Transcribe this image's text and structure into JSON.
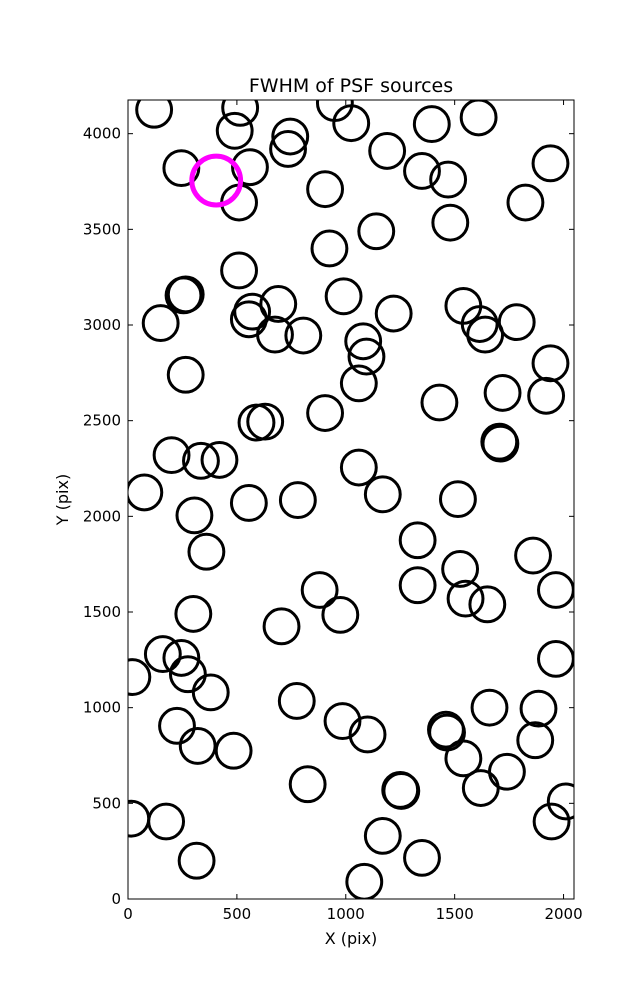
{
  "chart_data": {
    "type": "scatter",
    "title": "FWHM of PSF sources",
    "xlabel": "X (pix)",
    "ylabel": "Y (pix)",
    "xlim": [
      0,
      2048
    ],
    "ylim": [
      0,
      4176
    ],
    "xticks": [
      0,
      500,
      1000,
      1500,
      2000
    ],
    "yticks": [
      0,
      500,
      1000,
      1500,
      2000,
      2500,
      3000,
      3500,
      4000
    ],
    "grid": false,
    "marker_radius_pix": 80,
    "series": [
      {
        "color": "#000000",
        "points": [
          [
            120,
            4125
          ],
          [
            515,
            4135
          ],
          [
            950,
            4160
          ],
          [
            490,
            4015
          ],
          [
            745,
            3985
          ],
          [
            735,
            3920
          ],
          [
            1025,
            4055
          ],
          [
            1395,
            4050
          ],
          [
            1610,
            4085
          ],
          [
            245,
            3820
          ],
          [
            560,
            3825
          ],
          [
            1190,
            3910
          ],
          [
            1350,
            3805
          ],
          [
            1470,
            3760
          ],
          [
            1940,
            3845
          ],
          [
            510,
            3640
          ],
          [
            905,
            3710
          ],
          [
            1480,
            3535
          ],
          [
            1825,
            3640
          ],
          [
            925,
            3400
          ],
          [
            1140,
            3490
          ],
          [
            510,
            3285
          ],
          [
            255,
            3155
          ],
          [
            265,
            3160
          ],
          [
            990,
            3150
          ],
          [
            1540,
            3100
          ],
          [
            150,
            3010
          ],
          [
            570,
            3070
          ],
          [
            555,
            3030
          ],
          [
            690,
            3110
          ],
          [
            675,
            2950
          ],
          [
            805,
            2945
          ],
          [
            1080,
            2915
          ],
          [
            1220,
            3060
          ],
          [
            1615,
            3005
          ],
          [
            1640,
            2950
          ],
          [
            1785,
            3015
          ],
          [
            265,
            2740
          ],
          [
            1095,
            2835
          ],
          [
            1060,
            2695
          ],
          [
            1720,
            2645
          ],
          [
            1940,
            2800
          ],
          [
            1920,
            2630
          ],
          [
            905,
            2540
          ],
          [
            590,
            2490
          ],
          [
            630,
            2495
          ],
          [
            1430,
            2595
          ],
          [
            1705,
            2390
          ],
          [
            1710,
            2380
          ],
          [
            200,
            2320
          ],
          [
            335,
            2290
          ],
          [
            420,
            2295
          ],
          [
            1060,
            2255
          ],
          [
            75,
            2125
          ],
          [
            555,
            2070
          ],
          [
            780,
            2085
          ],
          [
            1170,
            2115
          ],
          [
            1515,
            2090
          ],
          [
            305,
            2005
          ],
          [
            1330,
            1875
          ],
          [
            360,
            1815
          ],
          [
            1860,
            1795
          ],
          [
            1330,
            1640
          ],
          [
            1525,
            1725
          ],
          [
            880,
            1615
          ],
          [
            975,
            1485
          ],
          [
            300,
            1490
          ],
          [
            1550,
            1570
          ],
          [
            1650,
            1540
          ],
          [
            1965,
            1615
          ],
          [
            705,
            1425
          ],
          [
            160,
            1280
          ],
          [
            245,
            1260
          ],
          [
            275,
            1175
          ],
          [
            20,
            1160
          ],
          [
            380,
            1080
          ],
          [
            1965,
            1255
          ],
          [
            775,
            1035
          ],
          [
            225,
            905
          ],
          [
            320,
            800
          ],
          [
            485,
            775
          ],
          [
            985,
            930
          ],
          [
            1100,
            860
          ],
          [
            1460,
            885
          ],
          [
            1465,
            870
          ],
          [
            1660,
            1000
          ],
          [
            1885,
            995
          ],
          [
            1870,
            830
          ],
          [
            1540,
            735
          ],
          [
            1740,
            665
          ],
          [
            1620,
            580
          ],
          [
            825,
            600
          ],
          [
            1250,
            570
          ],
          [
            1255,
            565
          ],
          [
            15,
            420
          ],
          [
            175,
            405
          ],
          [
            315,
            200
          ],
          [
            1170,
            330
          ],
          [
            1350,
            215
          ],
          [
            1085,
            90
          ],
          [
            1945,
            405
          ],
          [
            2010,
            510
          ]
        ]
      },
      {
        "color": "#ff00ff",
        "points": [
          [
            405,
            3755
          ]
        ]
      }
    ]
  }
}
